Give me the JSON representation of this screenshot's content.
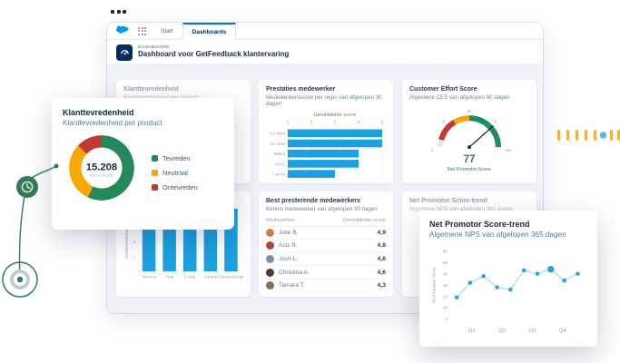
{
  "tabs": [
    {
      "label": "Start",
      "active": false
    },
    {
      "label": "Dashboards",
      "active": true
    }
  ],
  "header": {
    "eyebrow": "DASHBOARD",
    "title": "Dashboard voor GetFeedback klantervaring"
  },
  "cards": {
    "satisfaction_bg": {
      "title": "Klanttevredenheid",
      "subtitle": "Klanttevredenheid per product"
    },
    "employee_performance": {
      "title": "Prestaties medewerker",
      "subtitle": "Medewerkersscore per regio van afgelopen 30 dagen"
    },
    "customer_effort": {
      "title": "Customer Effort Score",
      "subtitle": "Algemene CES van afgelopen 90 dagen"
    },
    "top_employees": {
      "title": "Best presterende medewerkers",
      "subtitle": "Kennis medewerker van afgelopen 30 dagen",
      "columns": [
        "Medewerker",
        "Gemiddelde score"
      ],
      "rows": [
        {
          "name": "Julie B.",
          "score": "4,9"
        },
        {
          "name": "Aziz R.",
          "score": "4,8"
        },
        {
          "name": "Josh L.",
          "score": "4,6"
        },
        {
          "name": "Christina A.",
          "score": "4,6"
        },
        {
          "name": "Tamara T.",
          "score": "4,3"
        }
      ]
    },
    "nps_trend_bg": {
      "title": "Net Promotor Score-trend",
      "subtitle": "Algemene NPS van afgelopen 365 dagen"
    }
  },
  "overlays": {
    "satisfaction": {
      "title": "Klanttevredenheid",
      "subtitle": "Klanttevredenheid per product"
    },
    "nps": {
      "title": "Net Promotor Score-trend",
      "subtitle": "Algemene NPS van afgelopen 365 dagen"
    }
  },
  "chart_data": [
    {
      "name": "satisfaction_donut",
      "type": "pie",
      "title": "Klanttevredenheid per product",
      "labels": [
        "Tevreden",
        "Neutraal",
        "Ontevreden"
      ],
      "values_pct": [
        57,
        30,
        13
      ],
      "colors": [
        "#24885C",
        "#F6A800",
        "#C23934"
      ],
      "center_value": "15.208",
      "center_label": "REACTIES",
      "legend_position": "right"
    },
    {
      "name": "region_scores",
      "type": "bar",
      "orientation": "horizontal",
      "title": "Gemiddelde score",
      "categories": [
        "VS West",
        "VS Oost",
        "EMEA",
        "APAC",
        "LatAm"
      ],
      "values": [
        5,
        5,
        4,
        4,
        3
      ],
      "xticks": [
        1,
        2,
        3,
        4,
        5
      ],
      "xlim": [
        1,
        5
      ],
      "bar_color": "#1BA0E1",
      "grid": true
    },
    {
      "name": "ces_gauge",
      "type": "gauge",
      "min": 0,
      "max": 100,
      "value": 77,
      "display_value": "77",
      "label": "Net Promotor Score",
      "ticks": [
        0,
        25,
        50,
        75,
        100
      ],
      "segments": [
        {
          "from": 8,
          "to": 33,
          "color": "#C23934"
        },
        {
          "from": 33,
          "to": 50,
          "color": "#F6A800"
        },
        {
          "from": 50,
          "to": 100,
          "color": "#1E8E5A"
        }
      ],
      "value_color": "#21824F"
    },
    {
      "name": "channel_scores",
      "type": "bar",
      "orientation": "vertical",
      "categories": [
        "Telefoon",
        "Chat",
        "E-mail",
        "Sociaal",
        "Gemeenschap"
      ],
      "values": [
        4.2,
        4.2,
        4.2,
        4.2,
        4.2
      ],
      "ylabel": "Klanttevredenheid",
      "yticks": [
        1,
        2,
        3,
        4
      ],
      "ylim": [
        0,
        4.5
      ],
      "bar_color": "#1BA0E1"
    },
    {
      "name": "nps_trend",
      "type": "line",
      "ylabel": "Net Promotor Score",
      "yticks": [
        0,
        10,
        20,
        30,
        40,
        50,
        60
      ],
      "ylim": [
        0,
        60
      ],
      "x_quarter_labels": [
        "Q1",
        "Q2",
        "Q3",
        "Q4"
      ],
      "values": [
        19,
        32,
        38,
        28,
        26,
        43,
        40,
        44,
        34,
        40
      ],
      "highlight_index": 7,
      "line_color": "#A9D8F0",
      "point_color": "#2AA0DE",
      "grid": false,
      "legend_position": "none"
    }
  ],
  "avatar_colors": [
    "#C77E55",
    "#B0443C",
    "#7D8EA3",
    "#4E3B31",
    "#8B6F52"
  ],
  "colors": {
    "brand_blue": "#00A1E0",
    "accent_blue": "#0176D3",
    "bar_blue": "#1BA0E1",
    "green": "#24885C",
    "amber": "#F6A800",
    "red": "#C23934",
    "navy": "#032D60",
    "deco_green": "#2E7D54",
    "deco_orange": "#F7AE3C",
    "deco_dot_blue": "#55B8E8"
  },
  "icons": [
    "salesforce-logo-icon",
    "app-launcher-icon",
    "dashboard-gauge-icon",
    "clock-icon",
    "target-icon",
    "window-dots"
  ]
}
